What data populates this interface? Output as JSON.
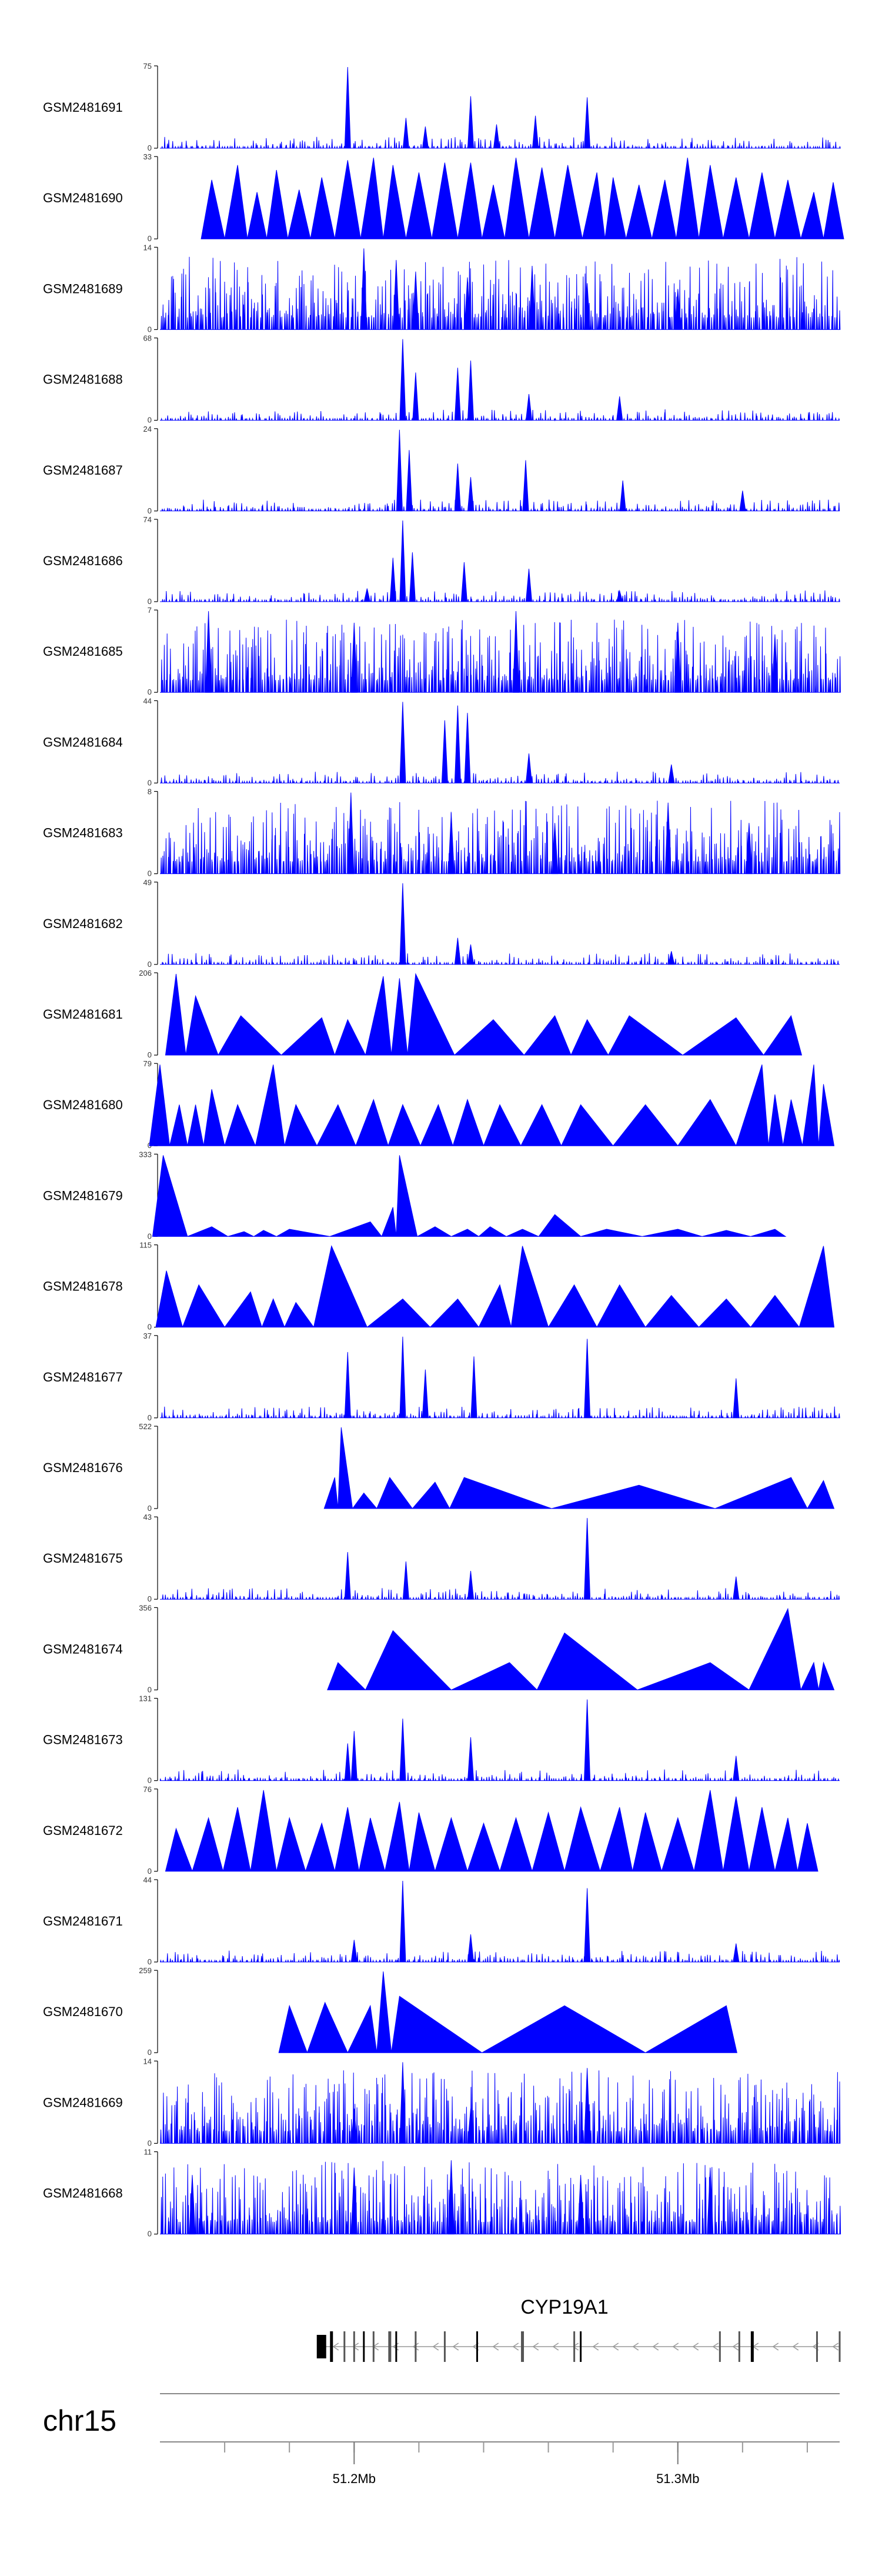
{
  "chart_data": {
    "type": "area",
    "title": "",
    "series_color": "#0000FF",
    "genomic_range_mb": [
      51.14,
      51.35
    ],
    "tracks": [
      {
        "name": "GSM2481691",
        "ymax": 75,
        "style": "sparse",
        "peaks": [
          [
            51.198,
            75
          ],
          [
            51.216,
            28
          ],
          [
            51.222,
            20
          ],
          [
            51.236,
            48
          ],
          [
            51.244,
            22
          ],
          [
            51.256,
            30
          ],
          [
            51.272,
            47
          ]
        ]
      },
      {
        "name": "GSM2481690",
        "ymax": 33,
        "style": "triangles",
        "peaks": [
          [
            51.156,
            24
          ],
          [
            51.164,
            30
          ],
          [
            51.17,
            19
          ],
          [
            51.176,
            28
          ],
          [
            51.183,
            20
          ],
          [
            51.19,
            25
          ],
          [
            51.198,
            32
          ],
          [
            51.206,
            33
          ],
          [
            51.212,
            30
          ],
          [
            51.22,
            27
          ],
          [
            51.228,
            31
          ],
          [
            51.236,
            31
          ],
          [
            51.243,
            22
          ],
          [
            51.25,
            33
          ],
          [
            51.258,
            29
          ],
          [
            51.266,
            30
          ],
          [
            51.275,
            27
          ],
          [
            51.28,
            25
          ],
          [
            51.288,
            22
          ],
          [
            51.296,
            24
          ],
          [
            51.303,
            33
          ],
          [
            51.31,
            30
          ],
          [
            51.318,
            25
          ],
          [
            51.326,
            27
          ],
          [
            51.334,
            24
          ],
          [
            51.342,
            19
          ],
          [
            51.348,
            23
          ]
        ]
      },
      {
        "name": "GSM2481689",
        "ymax": 14,
        "style": "dense",
        "peaks": [
          [
            51.203,
            14
          ],
          [
            51.213,
            12
          ],
          [
            51.219,
            10
          ],
          [
            51.235,
            9
          ],
          [
            51.255,
            11
          ],
          [
            51.272,
            8
          ],
          [
            51.3,
            7
          ]
        ]
      },
      {
        "name": "GSM2481688",
        "ymax": 68,
        "style": "sparse",
        "peaks": [
          [
            51.215,
            68
          ],
          [
            51.219,
            40
          ],
          [
            51.232,
            44
          ],
          [
            51.236,
            50
          ],
          [
            51.254,
            22
          ],
          [
            51.282,
            20
          ]
        ]
      },
      {
        "name": "GSM2481687",
        "ymax": 24,
        "style": "sparse",
        "peaks": [
          [
            51.214,
            24
          ],
          [
            51.217,
            18
          ],
          [
            51.232,
            14
          ],
          [
            51.236,
            10
          ],
          [
            51.253,
            15
          ],
          [
            51.283,
            9
          ],
          [
            51.32,
            6
          ]
        ]
      },
      {
        "name": "GSM2481686",
        "ymax": 74,
        "style": "sparse",
        "peaks": [
          [
            51.212,
            40
          ],
          [
            51.215,
            74
          ],
          [
            51.218,
            45
          ],
          [
            51.234,
            36
          ],
          [
            51.254,
            30
          ],
          [
            51.204,
            12
          ],
          [
            51.282,
            10
          ]
        ]
      },
      {
        "name": "GSM2481685",
        "ymax": 7,
        "style": "dense",
        "peaks": [
          [
            51.155,
            7
          ],
          [
            51.2,
            6
          ],
          [
            51.25,
            7
          ],
          [
            51.3,
            6
          ],
          [
            51.33,
            5
          ]
        ]
      },
      {
        "name": "GSM2481684",
        "ymax": 44,
        "style": "sparse",
        "peaks": [
          [
            51.215,
            44
          ],
          [
            51.228,
            34
          ],
          [
            51.232,
            42
          ],
          [
            51.235,
            38
          ],
          [
            51.254,
            16
          ],
          [
            51.298,
            10
          ]
        ]
      },
      {
        "name": "GSM2481683",
        "ymax": 8,
        "style": "dense",
        "peaks": [
          [
            51.199,
            8
          ],
          [
            51.23,
            6
          ],
          [
            51.262,
            5
          ],
          [
            51.297,
            7
          ],
          [
            51.322,
            5
          ]
        ]
      },
      {
        "name": "GSM2481682",
        "ymax": 49,
        "style": "sparse",
        "peaks": [
          [
            51.215,
            49
          ],
          [
            51.232,
            16
          ],
          [
            51.236,
            12
          ],
          [
            51.298,
            8
          ]
        ]
      },
      {
        "name": "GSM2481681",
        "ymax": 206,
        "style": "triangles",
        "peaks": [
          [
            51.145,
            206
          ],
          [
            51.151,
            150
          ],
          [
            51.165,
            100
          ],
          [
            51.19,
            95
          ],
          [
            51.198,
            90
          ],
          [
            51.209,
            200
          ],
          [
            51.214,
            195
          ],
          [
            51.219,
            206
          ],
          [
            51.243,
            90
          ],
          [
            51.262,
            100
          ],
          [
            51.272,
            90
          ],
          [
            51.285,
            100
          ],
          [
            51.318,
            95
          ],
          [
            51.335,
            100
          ]
        ]
      },
      {
        "name": "GSM2481680",
        "ymax": 79,
        "style": "triangles",
        "peaks": [
          [
            51.14,
            79
          ],
          [
            51.146,
            40
          ],
          [
            51.151,
            40
          ],
          [
            51.156,
            55
          ],
          [
            51.164,
            40
          ],
          [
            51.175,
            79
          ],
          [
            51.182,
            40
          ],
          [
            51.195,
            40
          ],
          [
            51.206,
            45
          ],
          [
            51.215,
            40
          ],
          [
            51.226,
            40
          ],
          [
            51.235,
            45
          ],
          [
            51.245,
            40
          ],
          [
            51.258,
            40
          ],
          [
            51.27,
            40
          ],
          [
            51.29,
            40
          ],
          [
            51.31,
            45
          ],
          [
            51.326,
            79
          ],
          [
            51.33,
            50
          ],
          [
            51.335,
            45
          ],
          [
            51.342,
            79
          ],
          [
            51.345,
            60
          ]
        ]
      },
      {
        "name": "GSM2481679",
        "ymax": 333,
        "style": "triangles",
        "peaks": [
          [
            51.141,
            333
          ],
          [
            51.156,
            40
          ],
          [
            51.166,
            20
          ],
          [
            51.172,
            25
          ],
          [
            51.18,
            30
          ],
          [
            51.205,
            60
          ],
          [
            51.212,
            120
          ],
          [
            51.214,
            333
          ],
          [
            51.225,
            40
          ],
          [
            51.235,
            30
          ],
          [
            51.242,
            40
          ],
          [
            51.252,
            30
          ],
          [
            51.262,
            90
          ],
          [
            51.278,
            30
          ],
          [
            51.3,
            30
          ],
          [
            51.315,
            25
          ],
          [
            51.33,
            30
          ]
        ]
      },
      {
        "name": "GSM2481678",
        "ymax": 115,
        "style": "triangles",
        "peaks": [
          [
            51.142,
            80
          ],
          [
            51.152,
            60
          ],
          [
            51.168,
            50
          ],
          [
            51.175,
            40
          ],
          [
            51.182,
            35
          ],
          [
            51.193,
            115
          ],
          [
            51.215,
            40
          ],
          [
            51.232,
            40
          ],
          [
            51.245,
            60
          ],
          [
            51.252,
            115
          ],
          [
            51.268,
            60
          ],
          [
            51.282,
            60
          ],
          [
            51.298,
            45
          ],
          [
            51.315,
            40
          ],
          [
            51.33,
            45
          ],
          [
            51.345,
            115
          ]
        ]
      },
      {
        "name": "GSM2481677",
        "ymax": 37,
        "style": "sparse",
        "peaks": [
          [
            51.198,
            30
          ],
          [
            51.215,
            37
          ],
          [
            51.222,
            22
          ],
          [
            51.237,
            28
          ],
          [
            51.272,
            36
          ],
          [
            51.318,
            18
          ]
        ]
      },
      {
        "name": "GSM2481676",
        "ymax": 522,
        "style": "triangles",
        "peaks": [
          [
            51.194,
            200
          ],
          [
            51.196,
            522
          ],
          [
            51.203,
            100
          ],
          [
            51.211,
            200
          ],
          [
            51.225,
            170
          ],
          [
            51.234,
            200
          ],
          [
            51.288,
            150
          ],
          [
            51.335,
            200
          ],
          [
            51.345,
            180
          ]
        ]
      },
      {
        "name": "GSM2481675",
        "ymax": 43,
        "style": "sparse",
        "peaks": [
          [
            51.198,
            25
          ],
          [
            51.216,
            20
          ],
          [
            51.236,
            15
          ],
          [
            51.272,
            43
          ],
          [
            51.318,
            12
          ]
        ]
      },
      {
        "name": "GSM2481674",
        "ymax": 356,
        "style": "triangles",
        "peaks": [
          [
            51.195,
            120
          ],
          [
            51.212,
            260
          ],
          [
            51.248,
            120
          ],
          [
            51.265,
            250
          ],
          [
            51.31,
            120
          ],
          [
            51.334,
            356
          ],
          [
            51.342,
            120
          ],
          [
            51.345,
            120
          ]
        ]
      },
      {
        "name": "GSM2481673",
        "ymax": 131,
        "style": "sparse",
        "peaks": [
          [
            51.198,
            60
          ],
          [
            51.2,
            80
          ],
          [
            51.215,
            100
          ],
          [
            51.236,
            70
          ],
          [
            51.272,
            131
          ],
          [
            51.318,
            40
          ]
        ]
      },
      {
        "name": "GSM2481672",
        "ymax": 76,
        "style": "triangles",
        "peaks": [
          [
            51.145,
            40
          ],
          [
            51.155,
            50
          ],
          [
            51.164,
            60
          ],
          [
            51.172,
            76
          ],
          [
            51.18,
            50
          ],
          [
            51.19,
            45
          ],
          [
            51.198,
            60
          ],
          [
            51.205,
            50
          ],
          [
            51.214,
            65
          ],
          [
            51.22,
            55
          ],
          [
            51.23,
            50
          ],
          [
            51.24,
            45
          ],
          [
            51.25,
            50
          ],
          [
            51.26,
            55
          ],
          [
            51.27,
            60
          ],
          [
            51.282,
            60
          ],
          [
            51.29,
            55
          ],
          [
            51.3,
            50
          ],
          [
            51.31,
            76
          ],
          [
            51.318,
            70
          ],
          [
            51.326,
            60
          ],
          [
            51.334,
            50
          ],
          [
            51.34,
            45
          ]
        ]
      },
      {
        "name": "GSM2481671",
        "ymax": 44,
        "style": "sparse",
        "peaks": [
          [
            51.215,
            44
          ],
          [
            51.236,
            15
          ],
          [
            51.272,
            40
          ],
          [
            51.2,
            12
          ],
          [
            51.318,
            10
          ]
        ]
      },
      {
        "name": "GSM2481670",
        "ymax": 259,
        "style": "triangles",
        "peaks": [
          [
            51.18,
            150
          ],
          [
            51.191,
            160
          ],
          [
            51.205,
            150
          ],
          [
            51.209,
            259
          ],
          [
            51.214,
            180
          ],
          [
            51.265,
            150
          ],
          [
            51.315,
            150
          ]
        ]
      },
      {
        "name": "GSM2481669",
        "ymax": 14,
        "style": "dense",
        "peaks": [
          [
            51.215,
            14
          ],
          [
            51.272,
            13
          ],
          [
            51.236,
            6
          ],
          [
            51.2,
            6
          ]
        ]
      },
      {
        "name": "GSM2481668",
        "ymax": 11,
        "style": "dense",
        "peaks": [
          [
            51.15,
            8
          ],
          [
            51.2,
            9
          ],
          [
            51.23,
            10
          ],
          [
            51.27,
            8
          ],
          [
            51.31,
            9
          ]
        ]
      }
    ],
    "gene": {
      "name": "CYP19A1",
      "strand": "-",
      "start_mb": 51.191,
      "end_mb": 51.35,
      "exons_mb": [
        51.193,
        51.197,
        51.2,
        51.203,
        51.206,
        51.211,
        51.213,
        51.219,
        51.228,
        51.238,
        51.252,
        51.268,
        51.27,
        51.313,
        51.319,
        51.323,
        51.343,
        51.35
      ]
    },
    "chromosome": "chr15",
    "axis": {
      "major_ticks": [
        51.2,
        51.3
      ],
      "major_tick_labels": [
        "51.2Mb",
        "51.3Mb"
      ],
      "minor_ticks": [
        51.16,
        51.18,
        51.2,
        51.22,
        51.24,
        51.26,
        51.28,
        51.3,
        51.32,
        51.34
      ]
    }
  }
}
